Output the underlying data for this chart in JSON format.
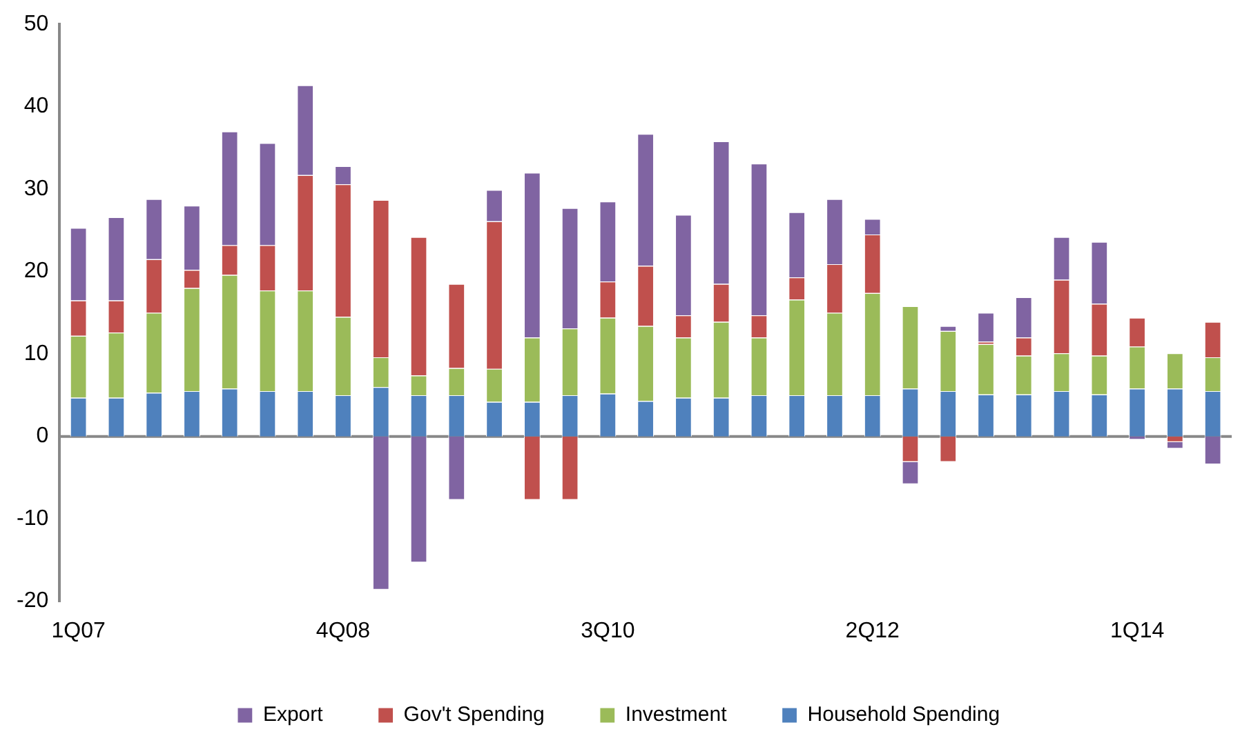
{
  "chart_data": {
    "type": "bar",
    "stacked": true,
    "categories": [
      "1Q07",
      null,
      null,
      null,
      null,
      null,
      null,
      "4Q08",
      null,
      null,
      null,
      null,
      null,
      null,
      "3Q10",
      null,
      null,
      null,
      null,
      null,
      null,
      "2Q12",
      null,
      null,
      null,
      null,
      null,
      null,
      "1Q14",
      null,
      null
    ],
    "series": [
      {
        "name": "Household Spending",
        "color": "#4f81bd",
        "values": [
          4.7,
          4.7,
          5.3,
          5.5,
          5.8,
          5.5,
          5.5,
          5.0,
          6.0,
          5.0,
          5.0,
          4.2,
          4.2,
          5.0,
          5.2,
          4.3,
          4.7,
          4.7,
          5.0,
          5.0,
          5.0,
          5.0,
          5.8,
          5.5,
          5.1,
          5.1,
          5.5,
          5.1,
          5.8,
          5.8,
          5.5
        ]
      },
      {
        "name": "Investment",
        "color": "#9bbb59",
        "values": [
          7.5,
          7.9,
          9.7,
          12.5,
          13.8,
          12.2,
          12.2,
          9.5,
          3.6,
          2.4,
          3.3,
          4.0,
          7.8,
          8.1,
          9.2,
          9.1,
          7.3,
          9.2,
          7.0,
          11.6,
          10.0,
          12.4,
          10.0,
          7.3,
          6.1,
          4.7,
          4.6,
          4.7,
          5.1,
          4.3,
          4.1
        ]
      },
      {
        "name": "Gov't Spending",
        "color": "#c0504d",
        "values": [
          4.3,
          3.9,
          6.5,
          2.2,
          3.6,
          5.5,
          14.0,
          16.1,
          19.1,
          16.8,
          10.2,
          17.9,
          -7.7,
          -7.7,
          4.4,
          7.3,
          2.7,
          4.6,
          2.7,
          2.7,
          5.9,
          7.1,
          -3.1,
          -3.1,
          0.3,
          2.2,
          8.9,
          6.3,
          3.5,
          -0.7,
          4.3
        ]
      },
      {
        "name": "Export",
        "color": "#8064a2",
        "values": [
          8.8,
          10.1,
          7.3,
          7.8,
          13.8,
          12.4,
          10.9,
          2.2,
          -18.6,
          -15.3,
          -7.7,
          3.8,
          20.0,
          14.6,
          9.7,
          16.0,
          12.2,
          17.3,
          18.4,
          7.9,
          7.9,
          1.9,
          -2.7,
          0.6,
          3.5,
          4.9,
          5.2,
          7.5,
          -0.4,
          -0.8,
          -3.4
        ]
      }
    ],
    "ylim": [
      -20,
      50
    ],
    "yticks": [
      -20,
      -10,
      0,
      10,
      20,
      30,
      40,
      50
    ],
    "ref_lines": [
      {
        "axis": "y",
        "value": 0,
        "color": "#888888"
      }
    ],
    "grid": false,
    "legend": "bottom"
  }
}
